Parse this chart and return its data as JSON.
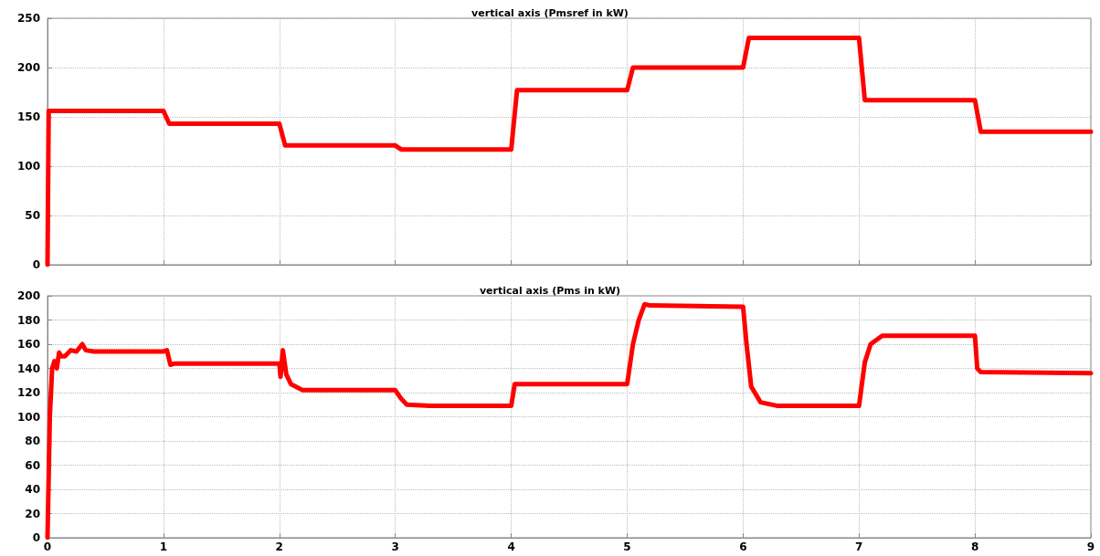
{
  "chart_data": [
    {
      "type": "line",
      "title": "vertical axis (Pmsref in kW)",
      "x": [
        0,
        0.01,
        1.0,
        1.05,
        2.0,
        2.05,
        3.0,
        3.05,
        4.0,
        4.05,
        5.0,
        5.05,
        6.0,
        6.05,
        7.0,
        7.05,
        8.0,
        8.05,
        9
      ],
      "series": [
        {
          "color": "#ff0000",
          "values": [
            0,
            156,
            156,
            143,
            143,
            121,
            121,
            117,
            117,
            177,
            177,
            200,
            200,
            230,
            230,
            167,
            167,
            135,
            135
          ]
        }
      ],
      "xlim": [
        0,
        9
      ],
      "xticks": [
        0,
        1,
        2,
        3,
        4,
        5,
        6,
        7,
        8,
        9
      ],
      "ylim": [
        0,
        250
      ],
      "yticks": [
        0,
        50,
        100,
        150,
        200,
        250
      ],
      "tick_labels": "y",
      "grid": true,
      "marker": "none",
      "line_style": "solid"
    },
    {
      "type": "line",
      "title": "vertical axis (Pms in kW)",
      "x": [
        0,
        0.02,
        0.04,
        0.06,
        0.08,
        0.1,
        0.12,
        0.15,
        0.2,
        0.25,
        0.3,
        0.33,
        0.4,
        1.0,
        1.03,
        1.06,
        1.1,
        2.0,
        2.01,
        2.03,
        2.06,
        2.1,
        2.2,
        3.0,
        3.05,
        3.1,
        3.3,
        4.0,
        4.03,
        5.0,
        5.05,
        5.1,
        5.15,
        5.2,
        6.0,
        6.03,
        6.07,
        6.15,
        6.3,
        7.0,
        7.05,
        7.1,
        7.2,
        8.0,
        8.02,
        8.05,
        9
      ],
      "series": [
        {
          "color": "#ff0000",
          "values": [
            0,
            100,
            140,
            146,
            140,
            153,
            150,
            150,
            155,
            154,
            160,
            155,
            154,
            154,
            155,
            143,
            144,
            144,
            133,
            155,
            135,
            127,
            122,
            122,
            115,
            110,
            109,
            109,
            127,
            127,
            160,
            180,
            193,
            192,
            191,
            160,
            125,
            112,
            109,
            109,
            145,
            160,
            167,
            167,
            140,
            137,
            136
          ]
        }
      ],
      "xlim": [
        0,
        9
      ],
      "xticks": [
        0,
        1,
        2,
        3,
        4,
        5,
        6,
        7,
        8,
        9
      ],
      "ylim": [
        0,
        200
      ],
      "yticks": [
        0,
        20,
        40,
        60,
        80,
        100,
        120,
        140,
        160,
        180,
        200
      ],
      "grid": true,
      "marker": "none",
      "line_style": "solid"
    }
  ]
}
